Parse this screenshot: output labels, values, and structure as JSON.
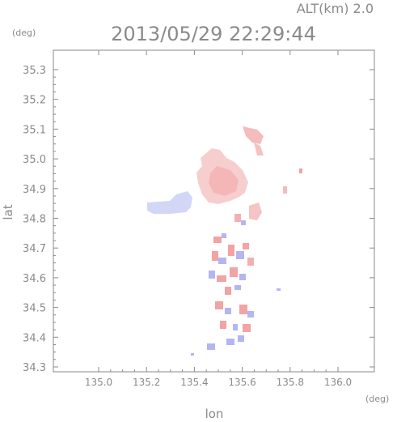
{
  "header": {
    "altitude_label": "ALT(km) 2.0",
    "timestamp": "2013/05/29 22:29:44",
    "y_unit": "(deg)",
    "x_unit": "(deg)"
  },
  "axes": {
    "xlabel": "lon",
    "ylabel": "lat",
    "x_ticks": [
      "135.0",
      "135.2",
      "135.4",
      "135.6",
      "135.8",
      "136.0"
    ],
    "y_ticks": [
      "35.3",
      "35.2",
      "35.1",
      "35.0",
      "34.9",
      "34.8",
      "34.7",
      "34.6",
      "34.5",
      "34.4",
      "34.3"
    ]
  },
  "style": {
    "axis_color": "#8a8a8a",
    "grid_color": "#e6e6e6",
    "positive_color": "#f2a3a3",
    "negative_color": "#b3b6f2"
  }
}
